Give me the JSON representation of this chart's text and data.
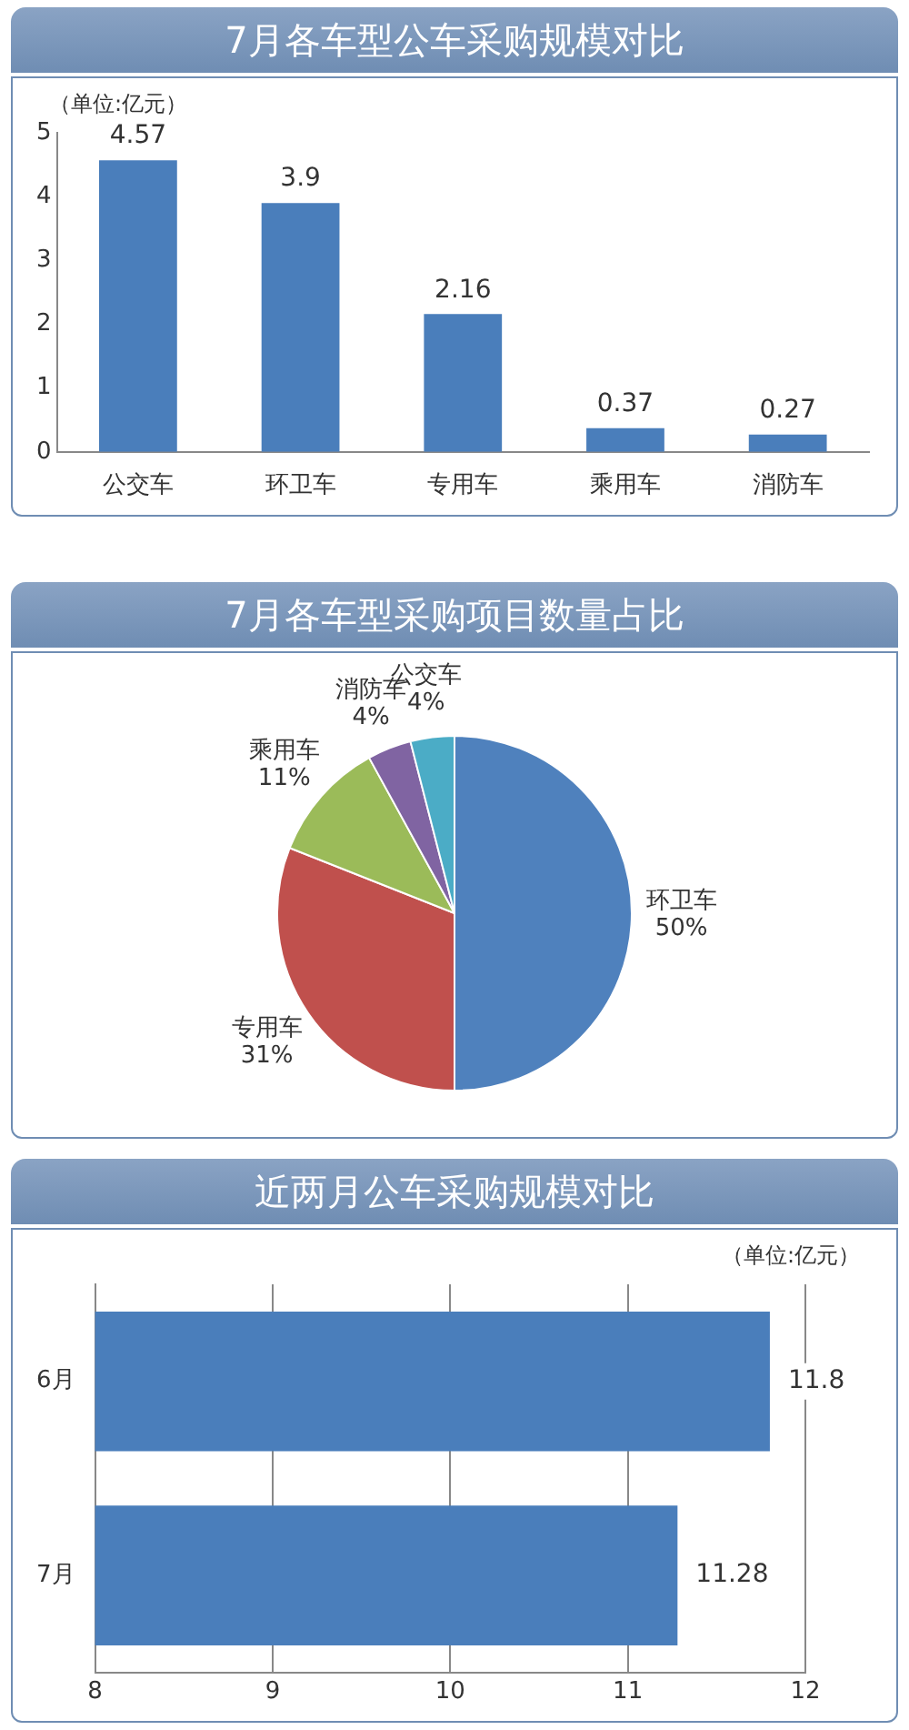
{
  "chart_data": [
    {
      "type": "bar",
      "title": "7月各车型公车采购规模对比",
      "categories": [
        "公交车",
        "环卫车",
        "专用车",
        "乘用车",
        "消防车"
      ],
      "values": [
        4.57,
        3.9,
        2.16,
        0.37,
        0.27
      ],
      "color": "#4a7ebb",
      "ylim": [
        0,
        5
      ],
      "yticks": [
        0,
        1,
        2,
        3,
        4,
        5
      ],
      "data_labels": true,
      "annotations": [
        "（单位:亿元）"
      ]
    },
    {
      "type": "pie",
      "title": "7月各车型采购项目数量占比",
      "categories": [
        "环卫车",
        "专用车",
        "乘用车",
        "消防车",
        "公交车"
      ],
      "values": [
        50,
        31,
        11,
        4,
        4
      ],
      "colors": [
        "#4f81bd",
        "#c0504d",
        "#9bbb59",
        "#8064a2",
        "#4bacc6"
      ],
      "value_labels": [
        "50%",
        "31%",
        "11%",
        "4%",
        "4%"
      ]
    },
    {
      "type": "bar",
      "orientation": "horizontal",
      "title": "近两月公车采购规模对比",
      "categories": [
        "6月",
        "7月"
      ],
      "values": [
        11.8,
        11.28
      ],
      "color": "#4a7ebb",
      "xlim": [
        8,
        12
      ],
      "xticks": [
        8,
        9,
        10,
        11,
        12
      ],
      "grid": "x",
      "data_labels": true,
      "annotations": [
        "（单位:亿元）"
      ]
    }
  ]
}
